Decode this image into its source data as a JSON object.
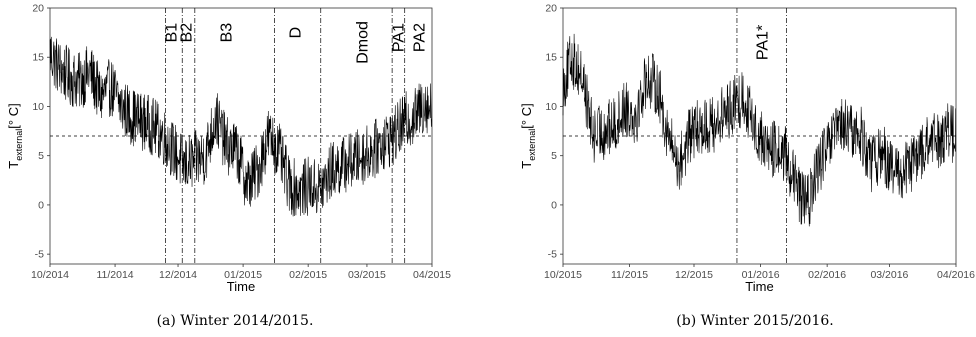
{
  "captions": [
    "(a) Winter 2014/2015.",
    "(b) Winter 2015/2016."
  ],
  "chart_data": [
    {
      "type": "line",
      "title": "",
      "xlabel": "Time",
      "ylabel": {
        "base": "T",
        "sub": "external",
        "unit": "[° C]"
      },
      "xlim": [
        "2014-10-01",
        "2015-04-01"
      ],
      "ylim": [
        -6,
        20
      ],
      "yticks": [
        -5,
        0,
        5,
        10,
        15,
        20
      ],
      "xticks": [
        {
          "date": "2014-10-01",
          "label": "10/2014"
        },
        {
          "date": "2014-11-01",
          "label": "11/2014"
        },
        {
          "date": "2014-12-01",
          "label": "12/2014"
        },
        {
          "date": "2015-01-01",
          "label": "01/2015"
        },
        {
          "date": "2015-02-01",
          "label": "02/2015"
        },
        {
          "date": "2015-03-01",
          "label": "03/2015"
        },
        {
          "date": "2015-04-01",
          "label": "04/2015"
        }
      ],
      "hline": 7,
      "vlines": [
        "2014-11-25",
        "2014-12-03",
        "2014-12-09",
        "2015-01-16",
        "2015-02-07",
        "2015-03-13",
        "2015-03-19"
      ],
      "region_labels": [
        {
          "text": "B1",
          "date": "2014-11-28",
          "y": 17.5
        },
        {
          "text": "B2",
          "date": "2014-12-05",
          "y": 17.5
        },
        {
          "text": "B3",
          "date": "2014-12-24",
          "y": 17.5
        },
        {
          "text": "D",
          "date": "2015-01-26",
          "y": 17.5
        },
        {
          "text": "Dmod",
          "date": "2015-02-27",
          "y": 16.5
        },
        {
          "text": "PA1",
          "date": "2015-03-16",
          "y": 17.0
        },
        {
          "text": "PA2",
          "date": "2015-03-26",
          "y": 17.0
        }
      ],
      "series": [
        {
          "x": [
            "2014-10-01",
            "2014-10-05",
            "2014-10-10",
            "2014-10-15",
            "2014-10-20",
            "2014-10-25",
            "2014-10-30",
            "2014-11-04",
            "2014-11-09",
            "2014-11-14",
            "2014-11-19",
            "2014-11-24",
            "2014-11-29",
            "2014-12-04",
            "2014-12-09",
            "2014-12-14",
            "2014-12-19",
            "2014-12-24",
            "2014-12-29",
            "2015-01-03",
            "2015-01-08",
            "2015-01-13",
            "2015-01-18",
            "2015-01-23",
            "2015-01-28",
            "2015-02-02",
            "2015-02-07",
            "2015-02-12",
            "2015-02-17",
            "2015-02-22",
            "2015-02-27",
            "2015-03-04",
            "2015-03-09",
            "2015-03-14",
            "2015-03-19",
            "2015-03-24",
            "2015-03-29",
            "2015-04-01"
          ],
          "y": [
            15.5,
            14.0,
            13.0,
            12.5,
            13.5,
            11.0,
            12.0,
            10.0,
            9.0,
            8.5,
            8.0,
            7.0,
            5.5,
            4.0,
            4.5,
            5.0,
            9.0,
            6.0,
            5.5,
            2.0,
            3.5,
            7.0,
            5.5,
            2.0,
            1.5,
            2.0,
            1.5,
            3.5,
            4.0,
            4.5,
            5.0,
            5.5,
            6.5,
            7.0,
            8.5,
            9.0,
            10.5,
            9.5
          ]
        }
      ]
    },
    {
      "type": "line",
      "title": "",
      "xlabel": "Time",
      "ylabel": {
        "base": "T",
        "sub": "external",
        "unit": "[° C]"
      },
      "xlim": [
        "2015-10-01",
        "2016-04-01"
      ],
      "ylim": [
        -6,
        20
      ],
      "yticks": [
        -5,
        0,
        5,
        10,
        15,
        20
      ],
      "xticks": [
        {
          "date": "2015-10-01",
          "label": "10/2015"
        },
        {
          "date": "2015-11-01",
          "label": "11/2015"
        },
        {
          "date": "2015-12-01",
          "label": "12/2015"
        },
        {
          "date": "2016-01-01",
          "label": "01/2016"
        },
        {
          "date": "2016-02-01",
          "label": "02/2016"
        },
        {
          "date": "2016-03-01",
          "label": "03/2016"
        },
        {
          "date": "2016-04-01",
          "label": "04/2016"
        }
      ],
      "hline": 7,
      "vlines": [
        "2015-12-21",
        "2016-01-13"
      ],
      "region_labels": [
        {
          "text": "PA1*",
          "date": "2016-01-02",
          "y": 16.5
        }
      ],
      "series": [
        {
          "x": [
            "2015-10-01",
            "2015-10-05",
            "2015-10-10",
            "2015-10-15",
            "2015-10-20",
            "2015-10-25",
            "2015-10-30",
            "2015-11-04",
            "2015-11-09",
            "2015-11-14",
            "2015-11-19",
            "2015-11-24",
            "2015-11-29",
            "2015-12-04",
            "2015-12-09",
            "2015-12-14",
            "2015-12-19",
            "2015-12-24",
            "2015-12-29",
            "2016-01-03",
            "2016-01-08",
            "2016-01-13",
            "2016-01-18",
            "2016-01-23",
            "2016-01-28",
            "2016-02-02",
            "2016-02-07",
            "2016-02-12",
            "2016-02-17",
            "2016-02-22",
            "2016-02-27",
            "2016-03-03",
            "2016-03-08",
            "2016-03-13",
            "2016-03-18",
            "2016-03-23",
            "2016-03-28",
            "2016-04-01"
          ],
          "y": [
            12.0,
            15.0,
            13.0,
            7.0,
            7.5,
            8.0,
            10.0,
            9.0,
            13.0,
            12.0,
            7.0,
            4.0,
            7.0,
            8.0,
            8.0,
            9.0,
            10.0,
            11.0,
            8.0,
            6.0,
            5.5,
            5.0,
            1.5,
            0.0,
            4.0,
            6.0,
            8.0,
            7.5,
            7.0,
            4.0,
            5.5,
            3.0,
            3.5,
            4.5,
            6.0,
            6.5,
            7.5,
            7.0
          ]
        }
      ]
    }
  ]
}
